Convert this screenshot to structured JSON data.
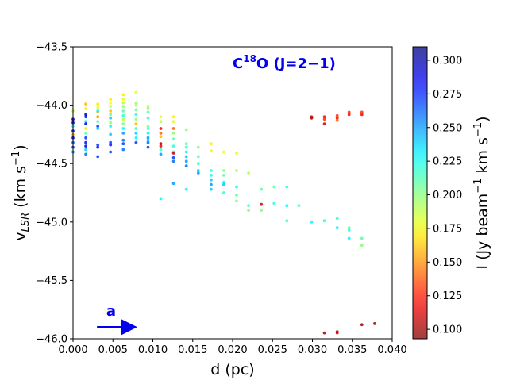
{
  "chart_data": {
    "type": "scatter",
    "title": "",
    "annotation": {
      "species": "C",
      "isotope": "18",
      "rest": "O (J=2−1)"
    },
    "arrow_label": "a",
    "xlabel": "d (pc)",
    "ylabel": {
      "base": "v",
      "sub": "LSR",
      "unit": " (km s",
      "sup": "−1",
      "close": ")"
    },
    "xlim": [
      0.0,
      0.04
    ],
    "ylim": [
      -46.0,
      -43.5
    ],
    "xticks": [
      "0.000",
      "0.005",
      "0.010",
      "0.015",
      "0.020",
      "0.025",
      "0.030",
      "0.035",
      "0.040"
    ],
    "yticks": [
      "−46.0",
      "−45.5",
      "−45.0",
      "−44.5",
      "−44.0",
      "−43.5"
    ],
    "colorbar": {
      "label": "I (Jy beam",
      "label_sup1": "−1",
      "label_mid": " km s",
      "label_sup2": "−1",
      "label_close": ")",
      "range": [
        0.093,
        0.31
      ],
      "ticks": [
        "0.100",
        "0.125",
        "0.150",
        "0.175",
        "0.200",
        "0.225",
        "0.250",
        "0.275",
        "0.300"
      ],
      "colormap": "jet",
      "alpha": 0.75
    },
    "arrow": {
      "x0": 0.003,
      "x1": 0.0078,
      "y": -45.9
    },
    "points_columns": [
      "d",
      "v",
      "I"
    ],
    "points": [
      [
        0.0,
        -44.12,
        0.3
      ],
      [
        0.0,
        -44.15,
        0.29
      ],
      [
        0.0,
        -44.18,
        0.22
      ],
      [
        0.0,
        -44.22,
        0.28
      ],
      [
        0.0,
        -44.25,
        0.16
      ],
      [
        0.0,
        -44.28,
        0.29
      ],
      [
        0.0,
        -44.32,
        0.26
      ],
      [
        0.0,
        -44.36,
        0.27
      ],
      [
        0.0,
        -44.4,
        0.25
      ],
      [
        0.0,
        -44.05,
        0.19
      ],
      [
        0.0016,
        -43.99,
        0.16
      ],
      [
        0.0016,
        -44.03,
        0.17
      ],
      [
        0.0016,
        -44.08,
        0.3
      ],
      [
        0.0016,
        -44.1,
        0.28
      ],
      [
        0.0016,
        -44.14,
        0.23
      ],
      [
        0.0016,
        -44.16,
        0.29
      ],
      [
        0.0016,
        -44.2,
        0.17
      ],
      [
        0.0016,
        -44.24,
        0.21
      ],
      [
        0.0016,
        -44.28,
        0.27
      ],
      [
        0.0016,
        -44.32,
        0.28
      ],
      [
        0.0016,
        -44.35,
        0.29
      ],
      [
        0.0016,
        -44.38,
        0.24
      ],
      [
        0.0016,
        -44.42,
        0.26
      ],
      [
        0.0031,
        -43.99,
        0.17
      ],
      [
        0.0031,
        -44.02,
        0.18
      ],
      [
        0.0031,
        -44.06,
        0.16
      ],
      [
        0.0031,
        -44.1,
        0.15
      ],
      [
        0.0031,
        -44.14,
        0.21
      ],
      [
        0.0031,
        -44.18,
        0.27
      ],
      [
        0.0031,
        -44.2,
        0.24
      ],
      [
        0.0031,
        -44.34,
        0.27
      ],
      [
        0.0031,
        -44.36,
        0.28
      ],
      [
        0.0031,
        -44.44,
        0.27
      ],
      [
        0.0031,
        -44.05,
        0.23
      ],
      [
        0.0047,
        -43.95,
        0.17
      ],
      [
        0.0047,
        -43.98,
        0.18
      ],
      [
        0.0047,
        -44.01,
        0.19
      ],
      [
        0.0047,
        -44.05,
        0.16
      ],
      [
        0.0047,
        -44.08,
        0.21
      ],
      [
        0.0047,
        -44.11,
        0.24
      ],
      [
        0.0047,
        -44.15,
        0.2
      ],
      [
        0.0047,
        -44.18,
        0.23
      ],
      [
        0.0047,
        -44.25,
        0.24
      ],
      [
        0.0047,
        -44.32,
        0.27
      ],
      [
        0.0047,
        -44.34,
        0.28
      ],
      [
        0.0047,
        -44.4,
        0.27
      ],
      [
        0.0063,
        -43.91,
        0.17
      ],
      [
        0.0063,
        -43.95,
        0.18
      ],
      [
        0.0063,
        -43.98,
        0.19
      ],
      [
        0.0063,
        -44.01,
        0.2
      ],
      [
        0.0063,
        -44.05,
        0.21
      ],
      [
        0.0063,
        -44.09,
        0.22
      ],
      [
        0.0063,
        -44.12,
        0.19
      ],
      [
        0.0063,
        -44.16,
        0.2
      ],
      [
        0.0063,
        -44.2,
        0.23
      ],
      [
        0.0063,
        -44.24,
        0.25
      ],
      [
        0.0063,
        -44.3,
        0.26
      ],
      [
        0.0063,
        -44.33,
        0.27
      ],
      [
        0.0063,
        -44.38,
        0.26
      ],
      [
        0.0079,
        -43.89,
        0.18
      ],
      [
        0.0079,
        -43.98,
        0.2
      ],
      [
        0.0079,
        -44.0,
        0.19
      ],
      [
        0.0079,
        -44.04,
        0.21
      ],
      [
        0.0079,
        -44.08,
        0.22
      ],
      [
        0.0079,
        -44.12,
        0.2
      ],
      [
        0.0079,
        -44.16,
        0.16
      ],
      [
        0.0079,
        -44.2,
        0.22
      ],
      [
        0.0079,
        -44.24,
        0.24
      ],
      [
        0.0079,
        -44.28,
        0.23
      ],
      [
        0.0079,
        -44.32,
        0.27
      ],
      [
        0.0094,
        -44.01,
        0.19
      ],
      [
        0.0094,
        -44.03,
        0.2
      ],
      [
        0.0094,
        -44.06,
        0.21
      ],
      [
        0.0094,
        -44.11,
        0.22
      ],
      [
        0.0094,
        -44.18,
        0.2
      ],
      [
        0.0094,
        -44.2,
        0.21
      ],
      [
        0.0094,
        -44.24,
        0.23
      ],
      [
        0.0094,
        -44.28,
        0.25
      ],
      [
        0.0094,
        -44.3,
        0.24
      ],
      [
        0.0094,
        -44.32,
        0.26
      ],
      [
        0.0094,
        -44.36,
        0.27
      ],
      [
        0.011,
        -44.1,
        0.18
      ],
      [
        0.011,
        -44.14,
        0.19
      ],
      [
        0.011,
        -44.2,
        0.12
      ],
      [
        0.011,
        -44.24,
        0.14
      ],
      [
        0.011,
        -44.27,
        0.16
      ],
      [
        0.011,
        -44.33,
        0.1
      ],
      [
        0.011,
        -44.35,
        0.12
      ],
      [
        0.011,
        -44.38,
        0.22
      ],
      [
        0.011,
        -44.42,
        0.25
      ],
      [
        0.011,
        -44.8,
        0.23
      ],
      [
        0.0126,
        -44.1,
        0.17
      ],
      [
        0.0126,
        -44.14,
        0.18
      ],
      [
        0.0126,
        -44.2,
        0.14
      ],
      [
        0.0126,
        -44.24,
        0.2
      ],
      [
        0.0126,
        -44.29,
        0.21
      ],
      [
        0.0126,
        -44.35,
        0.22
      ],
      [
        0.0126,
        -44.4,
        0.23
      ],
      [
        0.0126,
        -44.41,
        0.11
      ],
      [
        0.0126,
        -44.45,
        0.27
      ],
      [
        0.0126,
        -44.48,
        0.26
      ],
      [
        0.0126,
        -44.67,
        0.25
      ],
      [
        0.0142,
        -44.21,
        0.2
      ],
      [
        0.0142,
        -44.33,
        0.21
      ],
      [
        0.0142,
        -44.36,
        0.22
      ],
      [
        0.0142,
        -44.4,
        0.23
      ],
      [
        0.0142,
        -44.44,
        0.24
      ],
      [
        0.0142,
        -44.48,
        0.25
      ],
      [
        0.0142,
        -44.52,
        0.26
      ],
      [
        0.0142,
        -44.72,
        0.23
      ],
      [
        0.0157,
        -44.36,
        0.2
      ],
      [
        0.0157,
        -44.44,
        0.21
      ],
      [
        0.0157,
        -44.5,
        0.22
      ],
      [
        0.0157,
        -44.56,
        0.24
      ],
      [
        0.0157,
        -44.58,
        0.25
      ],
      [
        0.0173,
        -44.33,
        0.17
      ],
      [
        0.0173,
        -44.39,
        0.18
      ],
      [
        0.0173,
        -44.56,
        0.22
      ],
      [
        0.0173,
        -44.6,
        0.23
      ],
      [
        0.0173,
        -44.64,
        0.24
      ],
      [
        0.0173,
        -44.68,
        0.25
      ],
      [
        0.0173,
        -44.72,
        0.24
      ],
      [
        0.0189,
        -44.4,
        0.18
      ],
      [
        0.0189,
        -44.56,
        0.2
      ],
      [
        0.0189,
        -44.6,
        0.21
      ],
      [
        0.0189,
        -44.66,
        0.23
      ],
      [
        0.0189,
        -44.68,
        0.24
      ],
      [
        0.0189,
        -44.75,
        0.22
      ],
      [
        0.0205,
        -44.41,
        0.18
      ],
      [
        0.0205,
        -44.56,
        0.19
      ],
      [
        0.0205,
        -44.7,
        0.22
      ],
      [
        0.0205,
        -44.77,
        0.21
      ],
      [
        0.0205,
        -44.82,
        0.2
      ],
      [
        0.022,
        -44.58,
        0.19
      ],
      [
        0.022,
        -44.86,
        0.21
      ],
      [
        0.022,
        -44.9,
        0.2
      ],
      [
        0.0236,
        -44.72,
        0.21
      ],
      [
        0.0236,
        -44.85,
        0.11
      ],
      [
        0.0236,
        -44.9,
        0.2
      ],
      [
        0.0252,
        -44.7,
        0.21
      ],
      [
        0.0252,
        -44.84,
        0.22
      ],
      [
        0.0268,
        -44.7,
        0.22
      ],
      [
        0.0268,
        -44.86,
        0.23
      ],
      [
        0.0268,
        -44.99,
        0.22
      ],
      [
        0.0283,
        -44.86,
        0.21
      ],
      [
        0.0299,
        -44.11,
        0.1
      ],
      [
        0.0299,
        -44.1,
        0.11
      ],
      [
        0.0299,
        -45.0,
        0.23
      ],
      [
        0.0315,
        -44.1,
        0.12
      ],
      [
        0.0315,
        -44.12,
        0.13
      ],
      [
        0.0315,
        -44.16,
        0.11
      ],
      [
        0.0315,
        -44.99,
        0.22
      ],
      [
        0.0315,
        -45.95,
        0.1
      ],
      [
        0.0331,
        -44.09,
        0.13
      ],
      [
        0.0331,
        -44.11,
        0.12
      ],
      [
        0.0331,
        -44.13,
        0.14
      ],
      [
        0.0331,
        -44.97,
        0.22
      ],
      [
        0.0331,
        -45.05,
        0.23
      ],
      [
        0.0331,
        -45.94,
        0.1
      ],
      [
        0.0331,
        -45.95,
        0.11
      ],
      [
        0.0346,
        -44.06,
        0.13
      ],
      [
        0.0346,
        -44.08,
        0.12
      ],
      [
        0.0346,
        -45.05,
        0.21
      ],
      [
        0.0346,
        -45.07,
        0.22
      ],
      [
        0.0346,
        -45.14,
        0.23
      ],
      [
        0.0362,
        -44.06,
        0.13
      ],
      [
        0.0362,
        -44.08,
        0.12
      ],
      [
        0.0362,
        -45.14,
        0.21
      ],
      [
        0.0362,
        -45.2,
        0.2
      ],
      [
        0.0362,
        -45.88,
        0.1
      ],
      [
        0.0378,
        -45.87,
        0.1
      ]
    ]
  }
}
